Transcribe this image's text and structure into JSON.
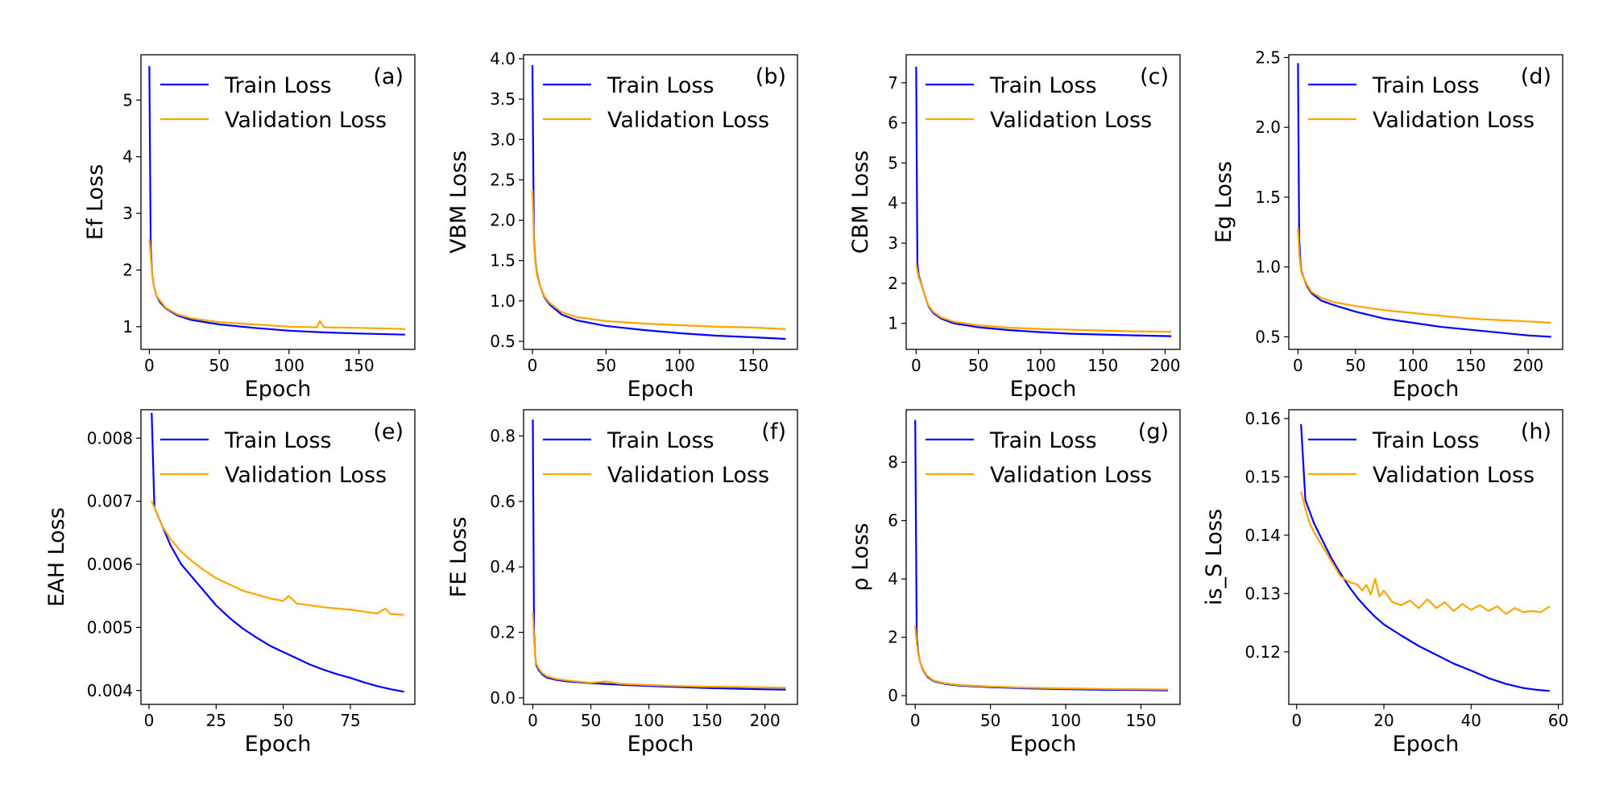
{
  "figure": {
    "colors": {
      "train": "#0000ff",
      "validation": "#ffa500"
    },
    "x_axis_label": "Epoch"
  },
  "chart_data": [
    {
      "type": "line",
      "panel_label": "(a)",
      "ylabel": "Ef Loss",
      "xlabel": "Epoch",
      "xlim": [
        -6,
        190
      ],
      "ylim": [
        0.6,
        5.8
      ],
      "xticks": [
        0,
        50,
        100,
        150
      ],
      "yticks": [
        1,
        2,
        3,
        4,
        5
      ],
      "legend": "upper-left",
      "series": [
        {
          "name": "Train Loss",
          "x": [
            0,
            1,
            2,
            3,
            5,
            8,
            12,
            20,
            30,
            50,
            75,
            100,
            125,
            150,
            183
          ],
          "y": [
            5.6,
            2.4,
            1.95,
            1.75,
            1.55,
            1.42,
            1.32,
            1.2,
            1.12,
            1.04,
            0.98,
            0.93,
            0.9,
            0.88,
            0.86
          ]
        },
        {
          "name": "Validation Loss",
          "x": [
            0,
            1,
            2,
            3,
            5,
            8,
            12,
            20,
            30,
            50,
            75,
            100,
            120,
            122,
            125,
            150,
            183
          ],
          "y": [
            2.55,
            2.25,
            1.95,
            1.75,
            1.55,
            1.45,
            1.33,
            1.22,
            1.15,
            1.08,
            1.04,
            1.0,
            0.99,
            1.1,
            0.99,
            0.98,
            0.96
          ]
        }
      ]
    },
    {
      "type": "line",
      "panel_label": "(b)",
      "ylabel": "VBM Loss",
      "xlabel": "Epoch",
      "xlim": [
        -6,
        180
      ],
      "ylim": [
        0.4,
        4.05
      ],
      "xticks": [
        0,
        50,
        100,
        150
      ],
      "yticks": [
        0.5,
        1.0,
        1.5,
        2.0,
        2.5,
        3.0,
        3.5,
        4.0
      ],
      "legend": "upper-left",
      "series": [
        {
          "name": "Train Loss",
          "x": [
            0,
            1,
            2,
            3,
            5,
            8,
            12,
            20,
            30,
            50,
            75,
            100,
            125,
            150,
            172
          ],
          "y": [
            3.92,
            1.8,
            1.5,
            1.35,
            1.2,
            1.05,
            0.95,
            0.83,
            0.76,
            0.69,
            0.64,
            0.6,
            0.57,
            0.55,
            0.53
          ]
        },
        {
          "name": "Validation Loss",
          "x": [
            0,
            1,
            2,
            3,
            5,
            8,
            12,
            20,
            30,
            50,
            75,
            100,
            125,
            150,
            172
          ],
          "y": [
            2.38,
            1.75,
            1.48,
            1.33,
            1.2,
            1.06,
            0.97,
            0.86,
            0.8,
            0.75,
            0.72,
            0.7,
            0.68,
            0.67,
            0.65
          ]
        }
      ]
    },
    {
      "type": "line",
      "panel_label": "(c)",
      "ylabel": "CBM Loss",
      "xlabel": "Epoch",
      "xlim": [
        -8,
        212
      ],
      "ylim": [
        0.35,
        7.7
      ],
      "xticks": [
        0,
        50,
        100,
        150,
        200
      ],
      "yticks": [
        1,
        2,
        3,
        4,
        5,
        6,
        7
      ],
      "legend": "upper-left",
      "series": [
        {
          "name": "Train Loss",
          "x": [
            0,
            1,
            2,
            4,
            6,
            8,
            10,
            14,
            20,
            30,
            50,
            75,
            100,
            125,
            150,
            175,
            205
          ],
          "y": [
            7.4,
            2.5,
            2.2,
            2.0,
            1.8,
            1.6,
            1.42,
            1.25,
            1.12,
            1.0,
            0.9,
            0.83,
            0.78,
            0.74,
            0.72,
            0.7,
            0.68
          ]
        },
        {
          "name": "Validation Loss",
          "x": [
            0,
            1,
            2,
            4,
            6,
            8,
            10,
            14,
            20,
            30,
            50,
            75,
            100,
            125,
            150,
            175,
            205
          ],
          "y": [
            2.5,
            2.3,
            2.15,
            1.98,
            1.8,
            1.6,
            1.44,
            1.28,
            1.15,
            1.04,
            0.95,
            0.89,
            0.86,
            0.84,
            0.82,
            0.8,
            0.79
          ]
        }
      ]
    },
    {
      "type": "line",
      "panel_label": "(d)",
      "ylabel": "Eg Loss",
      "xlabel": "Epoch",
      "xlim": [
        -8,
        230
      ],
      "ylim": [
        0.41,
        2.52
      ],
      "xticks": [
        0,
        50,
        100,
        150,
        200
      ],
      "yticks": [
        0.5,
        1.0,
        1.5,
        2.0,
        2.5
      ],
      "legend": "upper-left",
      "series": [
        {
          "name": "Train Loss",
          "x": [
            0,
            1,
            2,
            3,
            5,
            8,
            12,
            20,
            30,
            50,
            75,
            100,
            125,
            150,
            175,
            200,
            220
          ],
          "y": [
            2.46,
            1.2,
            1.05,
            0.97,
            0.92,
            0.86,
            0.81,
            0.76,
            0.73,
            0.68,
            0.63,
            0.6,
            0.57,
            0.55,
            0.53,
            0.51,
            0.5
          ]
        },
        {
          "name": "Validation Loss",
          "x": [
            0,
            1,
            2,
            3,
            5,
            8,
            12,
            20,
            30,
            50,
            75,
            100,
            125,
            150,
            175,
            200,
            220
          ],
          "y": [
            1.28,
            1.1,
            1.02,
            0.96,
            0.92,
            0.87,
            0.82,
            0.78,
            0.75,
            0.72,
            0.69,
            0.67,
            0.65,
            0.63,
            0.62,
            0.61,
            0.6
          ]
        }
      ]
    },
    {
      "type": "line",
      "panel_label": "(e)",
      "ylabel": "EAH Loss",
      "xlabel": "Epoch",
      "xlim": [
        -3,
        99
      ],
      "ylim": [
        0.00378,
        0.00845
      ],
      "xticks": [
        0,
        25,
        50,
        75
      ],
      "yticks": [
        0.004,
        0.005,
        0.006,
        0.007,
        0.008
      ],
      "ytick_labels": [
        "0.004",
        "0.005",
        "0.006",
        "0.007",
        "0.008"
      ],
      "legend": "upper-left",
      "series": [
        {
          "name": "Train Loss",
          "x": [
            1,
            2,
            3,
            5,
            8,
            12,
            16,
            20,
            25,
            30,
            35,
            40,
            45,
            50,
            55,
            60,
            65,
            70,
            75,
            80,
            85,
            90,
            95
          ],
          "y": [
            0.0084,
            0.0069,
            0.0068,
            0.0066,
            0.0063,
            0.006,
            0.0058,
            0.0056,
            0.00535,
            0.00515,
            0.00498,
            0.00484,
            0.00471,
            0.00461,
            0.00451,
            0.00441,
            0.00433,
            0.00426,
            0.0042,
            0.00413,
            0.00407,
            0.00402,
            0.00398
          ]
        },
        {
          "name": "Validation Loss",
          "x": [
            1,
            2,
            3,
            5,
            8,
            12,
            16,
            20,
            25,
            30,
            35,
            40,
            45,
            50,
            52,
            55,
            60,
            65,
            70,
            75,
            80,
            85,
            88,
            90,
            95
          ],
          "y": [
            0.007,
            0.0069,
            0.0068,
            0.0066,
            0.0064,
            0.0062,
            0.00605,
            0.00592,
            0.00578,
            0.00568,
            0.00558,
            0.00552,
            0.00546,
            0.00542,
            0.0055,
            0.00538,
            0.00535,
            0.00532,
            0.0053,
            0.00528,
            0.00525,
            0.00522,
            0.0053,
            0.00521,
            0.0052
          ]
        }
      ]
    },
    {
      "type": "line",
      "panel_label": "(f)",
      "ylabel": "FE Loss",
      "xlabel": "Epoch",
      "xlim": [
        -8,
        228
      ],
      "ylim": [
        -0.02,
        0.88
      ],
      "xticks": [
        0,
        50,
        100,
        150,
        200
      ],
      "yticks": [
        0.0,
        0.2,
        0.4,
        0.6,
        0.8
      ],
      "ytick_labels": [
        "0.0",
        "0.2",
        "0.4",
        "0.6",
        "0.8"
      ],
      "legend": "upper-left",
      "series": [
        {
          "name": "Train Loss",
          "x": [
            0,
            1,
            2,
            3,
            5,
            8,
            12,
            20,
            30,
            50,
            75,
            100,
            125,
            150,
            175,
            200,
            218
          ],
          "y": [
            0.85,
            0.2,
            0.13,
            0.1,
            0.085,
            0.072,
            0.062,
            0.055,
            0.05,
            0.045,
            0.04,
            0.036,
            0.033,
            0.03,
            0.028,
            0.026,
            0.025
          ]
        },
        {
          "name": "Validation Loss",
          "x": [
            0,
            1,
            2,
            3,
            5,
            8,
            12,
            20,
            30,
            50,
            63,
            75,
            100,
            125,
            150,
            175,
            200,
            218
          ],
          "y": [
            0.26,
            0.18,
            0.13,
            0.105,
            0.09,
            0.076,
            0.066,
            0.058,
            0.053,
            0.046,
            0.05,
            0.043,
            0.039,
            0.036,
            0.034,
            0.033,
            0.032,
            0.031
          ]
        }
      ]
    },
    {
      "type": "line",
      "panel_label": "(g)",
      "ylabel": "ρ Loss",
      "xlabel": "Epoch",
      "xlim": [
        -6,
        176
      ],
      "ylim": [
        -0.3,
        9.8
      ],
      "xticks": [
        0,
        50,
        100,
        150
      ],
      "yticks": [
        0,
        2,
        4,
        6,
        8
      ],
      "legend": "upper-left",
      "series": [
        {
          "name": "Train Loss",
          "x": [
            0,
            1,
            2,
            3,
            5,
            8,
            12,
            20,
            30,
            50,
            75,
            100,
            125,
            150,
            168
          ],
          "y": [
            9.45,
            2.0,
            1.5,
            1.2,
            0.9,
            0.65,
            0.5,
            0.4,
            0.34,
            0.29,
            0.25,
            0.22,
            0.2,
            0.19,
            0.18
          ]
        },
        {
          "name": "Validation Loss",
          "x": [
            0,
            1,
            2,
            3,
            5,
            8,
            12,
            20,
            30,
            50,
            75,
            100,
            125,
            150,
            168
          ],
          "y": [
            2.4,
            1.8,
            1.45,
            1.2,
            0.92,
            0.68,
            0.52,
            0.42,
            0.36,
            0.31,
            0.27,
            0.25,
            0.23,
            0.22,
            0.21
          ]
        }
      ]
    },
    {
      "type": "line",
      "panel_label": "(h)",
      "ylabel": "is_S Loss",
      "xlabel": "Epoch",
      "xlim": [
        -1.8,
        61
      ],
      "ylim": [
        0.111,
        0.1615
      ],
      "xticks": [
        0,
        20,
        40,
        60
      ],
      "yticks": [
        0.12,
        0.13,
        0.14,
        0.15,
        0.16
      ],
      "ytick_labels": [
        "0.12",
        "0.13",
        "0.14",
        "0.15",
        "0.16"
      ],
      "legend": "upper-left",
      "series": [
        {
          "name": "Train Loss",
          "x": [
            1,
            2,
            4,
            6,
            8,
            10,
            12,
            14,
            16,
            18,
            20,
            24,
            28,
            32,
            36,
            40,
            44,
            48,
            52,
            55,
            58
          ],
          "y": [
            0.159,
            0.146,
            0.142,
            0.139,
            0.136,
            0.1335,
            0.1312,
            0.1292,
            0.1275,
            0.126,
            0.1247,
            0.1228,
            0.121,
            0.1195,
            0.118,
            0.1168,
            0.1155,
            0.1145,
            0.1138,
            0.1135,
            0.1133
          ]
        },
        {
          "name": "Validation Loss",
          "x": [
            1,
            2,
            3,
            4,
            6,
            8,
            10,
            12,
            14,
            15,
            16,
            17,
            18,
            19,
            20,
            22,
            24,
            26,
            28,
            30,
            32,
            34,
            36,
            38,
            40,
            42,
            44,
            46,
            48,
            50,
            52,
            54,
            56,
            58
          ],
          "y": [
            0.1475,
            0.1445,
            0.142,
            0.1405,
            0.138,
            0.1355,
            0.133,
            0.132,
            0.1315,
            0.1305,
            0.1315,
            0.1298,
            0.1325,
            0.1295,
            0.1305,
            0.1285,
            0.128,
            0.1288,
            0.1275,
            0.129,
            0.1275,
            0.1285,
            0.127,
            0.1282,
            0.1272,
            0.128,
            0.127,
            0.1278,
            0.1265,
            0.1275,
            0.1268,
            0.127,
            0.1268,
            0.1278
          ]
        }
      ]
    }
  ]
}
